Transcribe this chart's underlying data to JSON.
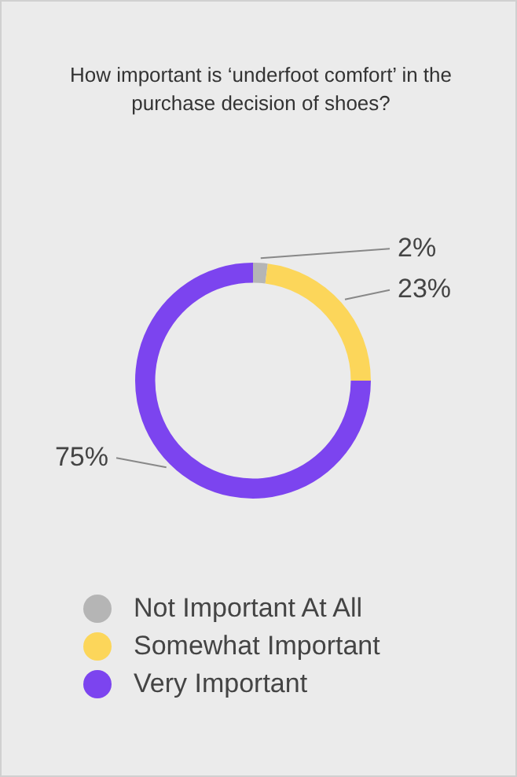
{
  "chart_data": {
    "type": "donut",
    "title": "How important is ‘underfoot comfort’ in the purchase decision of shoes?",
    "categories": [
      "Not Important At All",
      "Somewhat Important",
      "Very Important"
    ],
    "values": [
      2,
      23,
      75
    ],
    "colors": [
      "#b5b5b5",
      "#fcd65a",
      "#7c44ef"
    ],
    "value_labels": [
      "2%",
      "23%",
      "75%"
    ],
    "legend": "bottom"
  }
}
